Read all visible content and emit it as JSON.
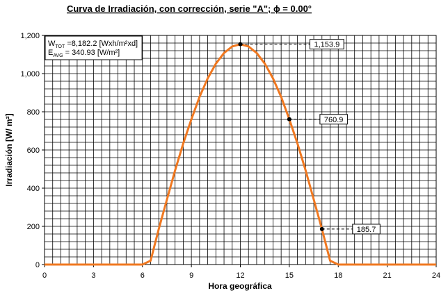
{
  "chart_data": {
    "type": "line",
    "title": "Curva de Irradiación, con corrección, serie \"A\"; ϕ = 0.00°",
    "x_label": "Hora geográfica",
    "y_label": "Irradiación [W/ m²]",
    "x": [
      0,
      0.5,
      1,
      1.5,
      2,
      2.5,
      3,
      3.5,
      4,
      4.5,
      5,
      5.5,
      6,
      6.5,
      7,
      7.5,
      8,
      8.5,
      9,
      9.5,
      10,
      10.5,
      11,
      11.5,
      12,
      12.5,
      13,
      13.5,
      14,
      14.5,
      15,
      15.5,
      16,
      16.5,
      17,
      17.5,
      18,
      18.5,
      19,
      19.5,
      20,
      20.5,
      21,
      21.5,
      22,
      22.5,
      23,
      23.5,
      24
    ],
    "series": [
      {
        "name": "Irradiación",
        "color": "#f07820",
        "values": [
          0,
          0,
          0,
          0,
          0,
          0,
          0,
          0,
          0,
          0,
          0,
          0,
          0,
          20,
          186,
          340,
          493,
          634,
          761,
          878,
          975,
          1052,
          1108,
          1142,
          1153.9,
          1142,
          1108,
          1052,
          975,
          878,
          760.9,
          634,
          493,
          340,
          185.7,
          20,
          0,
          0,
          0,
          0,
          0,
          0,
          0,
          0,
          0,
          0,
          0,
          0,
          0
        ]
      }
    ],
    "annotations": [
      {
        "x": 12,
        "y": 1153.9,
        "label": "1,153.9"
      },
      {
        "x": 15,
        "y": 760.9,
        "label": "760.9"
      },
      {
        "x": 17,
        "y": 185.7,
        "label": "185.7"
      }
    ],
    "info": [
      {
        "symbol": "W",
        "sub": "TOT",
        "text": " =8,182.2 [Wxh/m²xd]"
      },
      {
        "symbol": "E",
        "sub": "AVG",
        "text": " = 340.93 [W/m²]"
      }
    ],
    "xlim": [
      0,
      24
    ],
    "xticks": [
      0,
      3,
      6,
      9,
      12,
      15,
      18,
      21,
      24
    ],
    "ylim": [
      0,
      1200
    ],
    "yticks": [
      0,
      200,
      400,
      600,
      800,
      {
        "value": 1000,
        "label": "1,000"
      },
      {
        "value": 1200,
        "label": "1,200"
      }
    ],
    "grid": true
  }
}
